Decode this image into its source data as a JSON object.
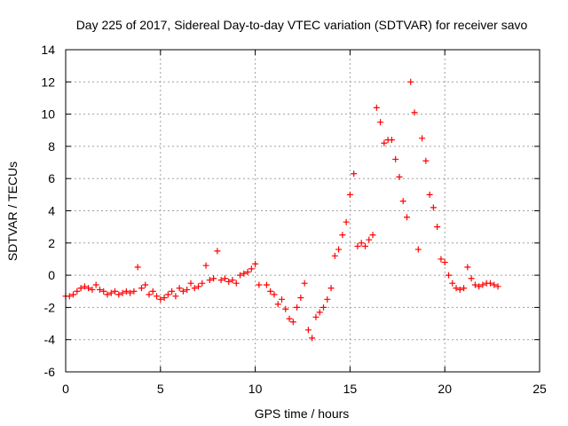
{
  "chart_data": {
    "type": "scatter",
    "title": "Day 225 of 2017, Sidereal Day-to-day VTEC variation (SDTVAR) for receiver savo",
    "xlabel": "GPS time / hours",
    "ylabel": "SDTVAR / TECUs",
    "xlim": [
      0,
      25
    ],
    "ylim": [
      -6,
      14
    ],
    "xticks": [
      0,
      5,
      10,
      15,
      20,
      25
    ],
    "yticks": [
      -6,
      -4,
      -2,
      0,
      2,
      4,
      6,
      8,
      10,
      12,
      14
    ],
    "grid": true,
    "marker": "+",
    "color": "#ff0000",
    "series": [
      {
        "name": "SDTVAR",
        "x": [
          0.0,
          0.2,
          0.4,
          0.6,
          0.8,
          1.0,
          1.2,
          1.4,
          1.6,
          1.8,
          2.0,
          2.2,
          2.4,
          2.6,
          2.8,
          3.0,
          3.2,
          3.4,
          3.6,
          3.8,
          4.0,
          4.2,
          4.4,
          4.6,
          4.8,
          5.0,
          5.2,
          5.4,
          5.6,
          5.8,
          6.0,
          6.2,
          6.4,
          6.6,
          6.8,
          7.0,
          7.2,
          7.4,
          7.6,
          7.8,
          8.0,
          8.2,
          8.4,
          8.6,
          8.8,
          9.0,
          9.2,
          9.4,
          9.6,
          9.8,
          10.0,
          10.2,
          10.6,
          10.8,
          11.0,
          11.2,
          11.4,
          11.6,
          11.8,
          12.0,
          12.2,
          12.4,
          12.6,
          12.8,
          13.0,
          13.2,
          13.4,
          13.6,
          13.8,
          14.0,
          14.2,
          14.4,
          14.6,
          14.8,
          15.0,
          15.2,
          15.4,
          15.6,
          15.8,
          16.0,
          16.2,
          16.4,
          16.6,
          16.8,
          17.0,
          17.2,
          17.4,
          17.6,
          17.8,
          18.0,
          18.2,
          18.4,
          18.6,
          18.8,
          19.0,
          19.2,
          19.4,
          19.6,
          19.8,
          20.0,
          20.2,
          20.4,
          20.6,
          20.8,
          21.0,
          21.2,
          21.4,
          21.6,
          21.8,
          22.0,
          22.2,
          22.4,
          22.6,
          22.8
        ],
        "y": [
          -1.3,
          -1.3,
          -1.2,
          -1.0,
          -0.8,
          -0.7,
          -0.8,
          -0.9,
          -0.6,
          -0.9,
          -1.0,
          -1.2,
          -1.1,
          -1.0,
          -1.2,
          -1.1,
          -1.0,
          -1.1,
          -1.0,
          0.5,
          -0.8,
          -0.6,
          -1.2,
          -1.0,
          -1.3,
          -1.5,
          -1.4,
          -1.2,
          -1.0,
          -1.3,
          -0.8,
          -1.0,
          -0.9,
          -0.5,
          -0.8,
          -0.7,
          -0.5,
          0.6,
          -0.3,
          -0.2,
          1.5,
          -0.3,
          -0.2,
          -0.4,
          -0.3,
          -0.5,
          0.0,
          0.1,
          0.2,
          0.4,
          0.7,
          -0.6,
          -0.6,
          -1.0,
          -1.2,
          -1.8,
          -1.5,
          -2.1,
          -2.7,
          -2.9,
          -2.0,
          -1.4,
          -0.5,
          -3.4,
          -3.9,
          -2.6,
          -2.3,
          -2.0,
          -1.5,
          -0.8,
          1.2,
          1.6,
          2.5,
          3.3,
          5.0,
          6.3,
          1.8,
          2.0,
          1.8,
          2.2,
          2.5,
          10.4,
          9.5,
          8.2,
          8.4,
          8.4,
          7.2,
          6.1,
          4.6,
          3.6,
          12.0,
          10.1,
          1.6,
          8.5,
          7.1,
          5.0,
          4.2,
          3.0,
          1.0,
          0.8,
          0.0,
          -0.5,
          -0.8,
          -0.9,
          -0.8,
          0.5,
          -0.2,
          -0.6,
          -0.7,
          -0.6,
          -0.5,
          -0.5,
          -0.6,
          -0.7
        ]
      }
    ]
  }
}
